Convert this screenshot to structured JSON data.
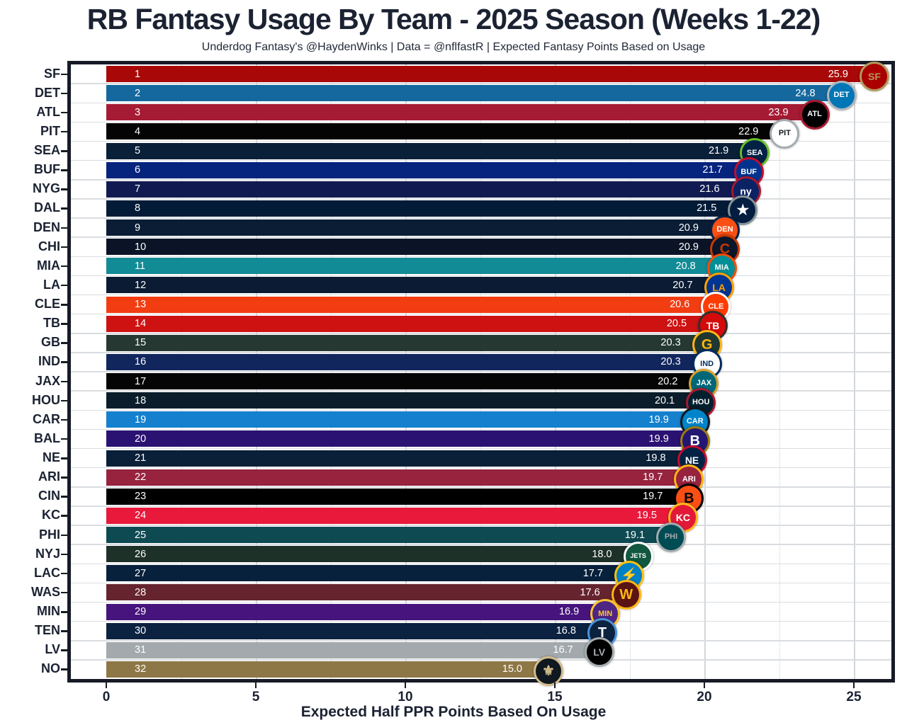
{
  "chart_data": {
    "type": "bar",
    "orientation": "horizontal",
    "title": "RB Fantasy Usage By Team - 2025 Season (Weeks 1-22)",
    "subtitle": "Underdog Fantasy's @HaydenWinks | Data = @nflfastR | Expected Fantasy Points Based on Usage",
    "xlabel": "Expected Half PPR Points Based On Usage",
    "ylabel": "",
    "xlim": [
      0,
      26.4
    ],
    "xticks": [
      0,
      5,
      10,
      15,
      20,
      25
    ],
    "grid": true,
    "legend": "none",
    "categories": [
      "SF",
      "DET",
      "ATL",
      "PIT",
      "SEA",
      "BUF",
      "NYG",
      "DAL",
      "DEN",
      "CHI",
      "MIA",
      "LA",
      "CLE",
      "TB",
      "GB",
      "IND",
      "JAX",
      "HOU",
      "CAR",
      "BAL",
      "NE",
      "ARI",
      "CIN",
      "KC",
      "PHI",
      "NYJ",
      "LAC",
      "WAS",
      "MIN",
      "TEN",
      "LV",
      "NO"
    ],
    "values": [
      25.9,
      24.8,
      23.9,
      22.9,
      21.9,
      21.7,
      21.6,
      21.5,
      20.9,
      20.9,
      20.8,
      20.7,
      20.6,
      20.5,
      20.3,
      20.3,
      20.2,
      20.1,
      19.9,
      19.9,
      19.8,
      19.7,
      19.7,
      19.5,
      19.1,
      18.0,
      17.7,
      17.6,
      16.9,
      16.8,
      16.7,
      15.0
    ],
    "ranks": [
      1,
      2,
      3,
      4,
      5,
      6,
      7,
      8,
      9,
      10,
      11,
      12,
      13,
      14,
      15,
      16,
      17,
      18,
      19,
      20,
      21,
      22,
      23,
      24,
      25,
      26,
      27,
      28,
      29,
      30,
      31,
      32
    ],
    "value_label_color": "#ffffff",
    "teams": [
      {
        "abbr": "SF",
        "rank": 1,
        "value": 25.9,
        "bar_color": "#a90808",
        "logo": {
          "bg": "#AA0000",
          "ring": "#B3995D",
          "fg": "#B3995D",
          "glyph": "SF"
        }
      },
      {
        "abbr": "DET",
        "rank": 2,
        "value": 24.8,
        "bar_color": "#15689e",
        "logo": {
          "bg": "#0076B6",
          "ring": "#B0B7BC",
          "fg": "#FFFFFF",
          "glyph": "DET"
        }
      },
      {
        "abbr": "ATL",
        "rank": 3,
        "value": 23.9,
        "bar_color": "#a51b33",
        "logo": {
          "bg": "#000000",
          "ring": "#A71930",
          "fg": "#FFFFFF",
          "glyph": "ATL"
        }
      },
      {
        "abbr": "PIT",
        "rank": 4,
        "value": 22.9,
        "bar_color": "#040404",
        "logo": {
          "bg": "#FFFFFF",
          "ring": "#A5ACAF",
          "fg": "#101820",
          "glyph": "PIT"
        }
      },
      {
        "abbr": "SEA",
        "rank": 5,
        "value": 21.9,
        "bar_color": "#0a1f38",
        "logo": {
          "bg": "#002244",
          "ring": "#69BE28",
          "fg": "#FFFFFF",
          "glyph": "SEA"
        }
      },
      {
        "abbr": "BUF",
        "rank": 6,
        "value": 21.7,
        "bar_color": "#06237e",
        "logo": {
          "bg": "#00338D",
          "ring": "#C60C30",
          "fg": "#FFFFFF",
          "glyph": "BUF"
        }
      },
      {
        "abbr": "NYG",
        "rank": 7,
        "value": 21.6,
        "bar_color": "#111b52",
        "logo": {
          "bg": "#0B2265",
          "ring": "#A71930",
          "fg": "#FFFFFF",
          "glyph": "ny"
        }
      },
      {
        "abbr": "DAL",
        "rank": 8,
        "value": 21.5,
        "bar_color": "#031b37",
        "logo": {
          "bg": "#041E42",
          "ring": "#869397",
          "fg": "#FFFFFF",
          "glyph": "★"
        }
      },
      {
        "abbr": "DEN",
        "rank": 9,
        "value": 20.9,
        "bar_color": "#0a1d35",
        "logo": {
          "bg": "#FB4F14",
          "ring": "#002244",
          "fg": "#FFFFFF",
          "glyph": "DEN"
        }
      },
      {
        "abbr": "CHI",
        "rank": 10,
        "value": 20.9,
        "bar_color": "#0a1426",
        "logo": {
          "bg": "#0B162A",
          "ring": "#C83803",
          "fg": "#C83803",
          "glyph": "C"
        }
      },
      {
        "abbr": "MIA",
        "rank": 11,
        "value": 20.8,
        "bar_color": "#118b95",
        "logo": {
          "bg": "#008E97",
          "ring": "#FC4C02",
          "fg": "#FFFFFF",
          "glyph": "MIA"
        }
      },
      {
        "abbr": "LA",
        "rank": 12,
        "value": 20.7,
        "bar_color": "#0a1b33",
        "logo": {
          "bg": "#003594",
          "ring": "#FFA300",
          "fg": "#FFA300",
          "glyph": "LA"
        }
      },
      {
        "abbr": "CLE",
        "rank": 13,
        "value": 20.6,
        "bar_color": "#f23c12",
        "logo": {
          "bg": "#FF3C00",
          "ring": "#FFFFFF",
          "fg": "#FFFFFF",
          "glyph": "CLE"
        }
      },
      {
        "abbr": "TB",
        "rank": 14,
        "value": 20.5,
        "bar_color": "#ce1212",
        "logo": {
          "bg": "#D50A0A",
          "ring": "#34302B",
          "fg": "#FFFFFF",
          "glyph": "TB"
        }
      },
      {
        "abbr": "GB",
        "rank": 15,
        "value": 20.3,
        "bar_color": "#253831",
        "logo": {
          "bg": "#203731",
          "ring": "#FFB612",
          "fg": "#FFB612",
          "glyph": "G"
        }
      },
      {
        "abbr": "IND",
        "rank": 16,
        "value": 20.3,
        "bar_color": "#12265e",
        "logo": {
          "bg": "#FFFFFF",
          "ring": "#002C5F",
          "fg": "#002C5F",
          "glyph": "IND"
        }
      },
      {
        "abbr": "JAX",
        "rank": 17,
        "value": 20.2,
        "bar_color": "#050505",
        "logo": {
          "bg": "#006778",
          "ring": "#D7A22A",
          "fg": "#FFFFFF",
          "glyph": "JAX"
        }
      },
      {
        "abbr": "HOU",
        "rank": 18,
        "value": 20.1,
        "bar_color": "#0b1d2a",
        "logo": {
          "bg": "#03202F",
          "ring": "#A71930",
          "fg": "#FFFFFF",
          "glyph": "HOU"
        }
      },
      {
        "abbr": "CAR",
        "rank": 19,
        "value": 19.9,
        "bar_color": "#1580cd",
        "logo": {
          "bg": "#0085CA",
          "ring": "#101820",
          "fg": "#FFFFFF",
          "glyph": "CAR"
        }
      },
      {
        "abbr": "BAL",
        "rank": 20,
        "value": 19.9,
        "bar_color": "#2a1273",
        "logo": {
          "bg": "#241773",
          "ring": "#9E7C0C",
          "fg": "#FFFFFF",
          "glyph": "B"
        }
      },
      {
        "abbr": "NE",
        "rank": 21,
        "value": 19.8,
        "bar_color": "#0a1f38",
        "logo": {
          "bg": "#002244",
          "ring": "#C60C30",
          "fg": "#FFFFFF",
          "glyph": "NE"
        }
      },
      {
        "abbr": "ARI",
        "rank": 22,
        "value": 19.7,
        "bar_color": "#97233f",
        "logo": {
          "bg": "#97233F",
          "ring": "#FFB612",
          "fg": "#FFFFFF",
          "glyph": "ARI"
        }
      },
      {
        "abbr": "CIN",
        "rank": 23,
        "value": 19.7,
        "bar_color": "#000000",
        "logo": {
          "bg": "#FB4F14",
          "ring": "#000000",
          "fg": "#000000",
          "glyph": "B"
        }
      },
      {
        "abbr": "KC",
        "rank": 24,
        "value": 19.5,
        "bar_color": "#e8193b",
        "logo": {
          "bg": "#E31837",
          "ring": "#FFB81C",
          "fg": "#FFFFFF",
          "glyph": "KC"
        }
      },
      {
        "abbr": "PHI",
        "rank": 25,
        "value": 19.1,
        "bar_color": "#0e4a52",
        "logo": {
          "bg": "#004C54",
          "ring": "#A5ACAF",
          "fg": "#A5ACAF",
          "glyph": "PHI"
        }
      },
      {
        "abbr": "NYJ",
        "rank": 26,
        "value": 18.0,
        "bar_color": "#1e3128",
        "logo": {
          "bg": "#125740",
          "ring": "#FFFFFF",
          "fg": "#FFFFFF",
          "glyph": "JETS"
        }
      },
      {
        "abbr": "LAC",
        "rank": 27,
        "value": 17.7,
        "bar_color": "#07203c",
        "logo": {
          "bg": "#0080C6",
          "ring": "#FFC20E",
          "fg": "#FFC20E",
          "glyph": "⚡"
        }
      },
      {
        "abbr": "WAS",
        "rank": 28,
        "value": 17.6,
        "bar_color": "#66242f",
        "logo": {
          "bg": "#5A1414",
          "ring": "#FFB612",
          "fg": "#FFB612",
          "glyph": "W"
        }
      },
      {
        "abbr": "MIN",
        "rank": 29,
        "value": 16.9,
        "bar_color": "#46147c",
        "logo": {
          "bg": "#4F2683",
          "ring": "#FFC62F",
          "fg": "#FFC62F",
          "glyph": "MIN"
        }
      },
      {
        "abbr": "TEN",
        "rank": 30,
        "value": 16.8,
        "bar_color": "#0b2240",
        "logo": {
          "bg": "#0C2340",
          "ring": "#4B92DB",
          "fg": "#FFFFFF",
          "glyph": "T"
        }
      },
      {
        "abbr": "LV",
        "rank": 31,
        "value": 16.7,
        "bar_color": "#a3a9ac",
        "logo": {
          "bg": "#000000",
          "ring": "#A5ACAF",
          "fg": "#A5ACAF",
          "glyph": "LV"
        }
      },
      {
        "abbr": "NO",
        "rank": 32,
        "value": 15.0,
        "bar_color": "#8e7746",
        "logo": {
          "bg": "#101820",
          "ring": "#D3BC8D",
          "fg": "#D3BC8D",
          "glyph": "⚜"
        }
      }
    ]
  }
}
